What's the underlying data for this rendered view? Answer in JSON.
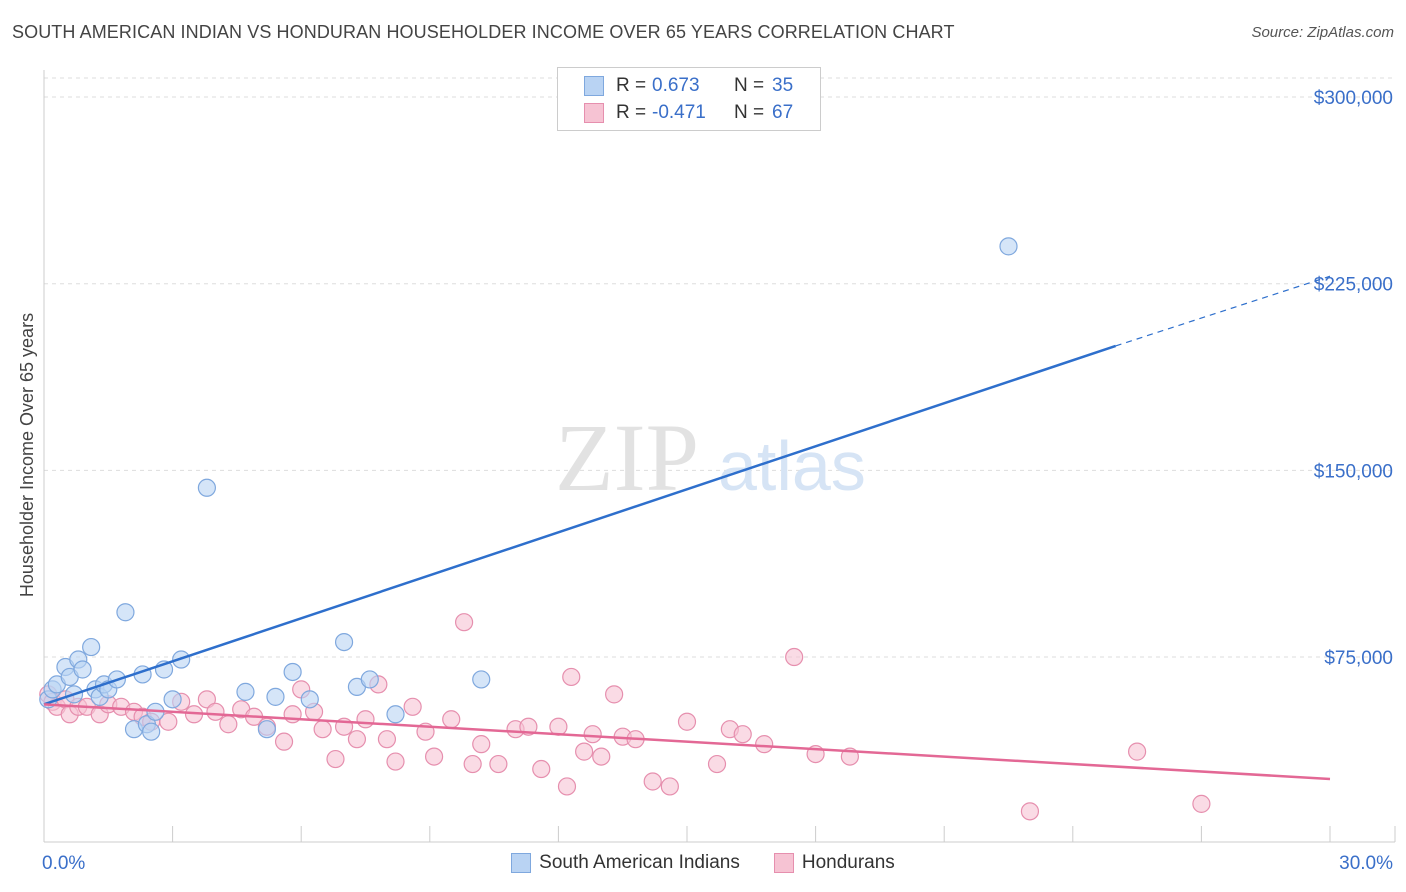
{
  "title": "SOUTH AMERICAN INDIAN VS HONDURAN HOUSEHOLDER INCOME OVER 65 YEARS CORRELATION CHART",
  "source": "Source: ZipAtlas.com",
  "watermark": {
    "zip": "ZIP",
    "atlas": "atlas"
  },
  "colors": {
    "blue_fill": "#b9d3f3",
    "blue_stroke": "#7fa8de",
    "blue_line": "#2e6fcc",
    "pink_fill": "#f6c3d3",
    "pink_stroke": "#e68fae",
    "pink_line": "#e36895",
    "axis_label": "#3a6fc9",
    "grid": "#dddddd"
  },
  "stats_legend": [
    {
      "r_label": "R =",
      "r_value": "0.673",
      "n_label": "N =",
      "n_value": "35"
    },
    {
      "r_label": "R =",
      "r_value": "-0.471",
      "n_label": "N =",
      "n_value": "67"
    }
  ],
  "chart_data": {
    "type": "scatter",
    "xlabel": "",
    "ylabel": "Householder Income Over 65 years",
    "xlim": [
      0,
      30
    ],
    "ylim": [
      0,
      320000
    ],
    "x_tick_labels": [
      "0.0%",
      "30.0%"
    ],
    "y_ticks": [
      75000,
      150000,
      225000,
      300000
    ],
    "y_tick_labels": [
      "$75,000",
      "$150,000",
      "$225,000",
      "$300,000"
    ],
    "legend": [
      "South American Indians",
      "Hondurans"
    ],
    "series": [
      {
        "name": "South American Indians",
        "points": [
          [
            0.1,
            58000
          ],
          [
            0.2,
            62000
          ],
          [
            0.3,
            64000
          ],
          [
            0.5,
            71000
          ],
          [
            0.6,
            67000
          ],
          [
            0.7,
            60000
          ],
          [
            0.8,
            74000
          ],
          [
            0.9,
            70000
          ],
          [
            1.1,
            79000
          ],
          [
            1.2,
            62000
          ],
          [
            1.3,
            59000
          ],
          [
            1.4,
            64000
          ],
          [
            1.5,
            62000
          ],
          [
            1.7,
            66000
          ],
          [
            1.9,
            93000
          ],
          [
            2.1,
            46000
          ],
          [
            2.3,
            68000
          ],
          [
            2.4,
            48000
          ],
          [
            2.5,
            45000
          ],
          [
            2.6,
            53000
          ],
          [
            2.8,
            70000
          ],
          [
            3.0,
            58000
          ],
          [
            3.2,
            74000
          ],
          [
            3.8,
            143000
          ],
          [
            4.7,
            61000
          ],
          [
            5.2,
            46000
          ],
          [
            5.4,
            59000
          ],
          [
            5.8,
            69000
          ],
          [
            6.2,
            58000
          ],
          [
            7.0,
            81000
          ],
          [
            7.3,
            63000
          ],
          [
            7.6,
            66000
          ],
          [
            8.2,
            52000
          ],
          [
            10.2,
            66000
          ],
          [
            22.5,
            240000
          ]
        ]
      },
      {
        "name": "Hondurans",
        "points": [
          [
            0.1,
            60000
          ],
          [
            0.2,
            57000
          ],
          [
            0.3,
            55000
          ],
          [
            0.5,
            58000
          ],
          [
            0.6,
            52000
          ],
          [
            0.8,
            55000
          ],
          [
            1.0,
            55000
          ],
          [
            1.3,
            52000
          ],
          [
            1.5,
            56000
          ],
          [
            1.8,
            55000
          ],
          [
            2.1,
            53000
          ],
          [
            2.3,
            51000
          ],
          [
            2.5,
            49000
          ],
          [
            2.9,
            49000
          ],
          [
            3.2,
            57000
          ],
          [
            3.5,
            52000
          ],
          [
            3.8,
            58000
          ],
          [
            4.0,
            53000
          ],
          [
            4.3,
            48000
          ],
          [
            4.6,
            54000
          ],
          [
            4.9,
            51000
          ],
          [
            5.2,
            47000
          ],
          [
            5.6,
            41000
          ],
          [
            5.8,
            52000
          ],
          [
            6.0,
            62000
          ],
          [
            6.3,
            53000
          ],
          [
            6.5,
            46000
          ],
          [
            6.8,
            34000
          ],
          [
            7.0,
            47000
          ],
          [
            7.3,
            42000
          ],
          [
            7.5,
            50000
          ],
          [
            7.8,
            64000
          ],
          [
            8.0,
            42000
          ],
          [
            8.2,
            33000
          ],
          [
            8.6,
            55000
          ],
          [
            8.9,
            45000
          ],
          [
            9.1,
            35000
          ],
          [
            9.5,
            50000
          ],
          [
            9.8,
            89000
          ],
          [
            10.0,
            32000
          ],
          [
            10.2,
            40000
          ],
          [
            10.6,
            32000
          ],
          [
            11.0,
            46000
          ],
          [
            11.3,
            47000
          ],
          [
            11.6,
            30000
          ],
          [
            12.0,
            47000
          ],
          [
            12.2,
            23000
          ],
          [
            12.3,
            67000
          ],
          [
            12.6,
            37000
          ],
          [
            12.8,
            44000
          ],
          [
            13.0,
            35000
          ],
          [
            13.3,
            60000
          ],
          [
            13.5,
            43000
          ],
          [
            13.8,
            42000
          ],
          [
            14.2,
            25000
          ],
          [
            14.6,
            23000
          ],
          [
            15.0,
            49000
          ],
          [
            15.7,
            32000
          ],
          [
            16.0,
            46000
          ],
          [
            16.3,
            44000
          ],
          [
            16.8,
            40000
          ],
          [
            17.5,
            75000
          ],
          [
            18.0,
            36000
          ],
          [
            18.8,
            35000
          ],
          [
            23.0,
            13000
          ],
          [
            25.5,
            37000
          ],
          [
            27.0,
            16000
          ]
        ]
      }
    ],
    "trendlines": [
      {
        "series": "South American Indians",
        "x": [
          0,
          25
        ],
        "y": [
          56000,
          200000
        ],
        "dashed_to_x": 30,
        "dashed_to_y": 228000
      },
      {
        "series": "Hondurans",
        "x": [
          0,
          30
        ],
        "y": [
          56000,
          26000
        ]
      }
    ]
  }
}
